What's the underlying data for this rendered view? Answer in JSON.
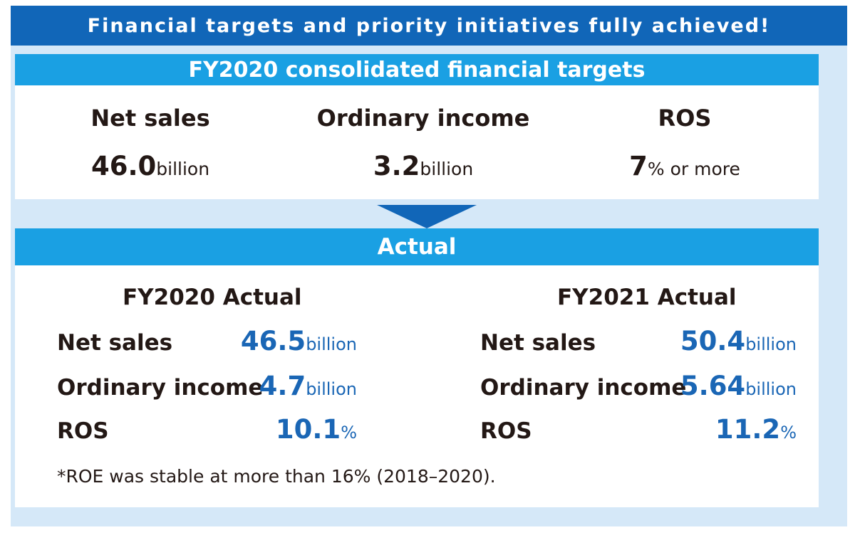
{
  "banner": "Financial targets and priority initiatives fully achieved!",
  "targets": {
    "header": "FY2020 consolidated financial targets",
    "items": [
      {
        "label": "Net sales",
        "value": "46.0",
        "unit": "billion"
      },
      {
        "label": "Ordinary income",
        "value": "3.2",
        "unit": "billion"
      },
      {
        "label": "ROS",
        "value": "7",
        "unit": "% or more"
      }
    ]
  },
  "actual": {
    "header": "Actual",
    "fy2020": {
      "title": "FY2020 Actual",
      "rows": [
        {
          "label": "Net sales",
          "value": "46.5",
          "unit": "billion"
        },
        {
          "label": "Ordinary income",
          "value": "4.7",
          "unit": "billion"
        },
        {
          "label": "ROS",
          "value": "10.1",
          "unit": "%"
        }
      ]
    },
    "fy2021": {
      "title": "FY2021 Actual",
      "rows": [
        {
          "label": "Net sales",
          "value": "50.4",
          "unit": "billion"
        },
        {
          "label": "Ordinary income",
          "value": "5.64",
          "unit": "billion"
        },
        {
          "label": "ROS",
          "value": "11.2",
          "unit": "%"
        }
      ]
    },
    "note": "*ROE was stable at more than 16% (2018–2020)."
  },
  "colors": {
    "banner": "#1166b8",
    "panel_header": "#1aa0e3",
    "background": "#d5e8f8",
    "value_blue": "#1a66b5"
  }
}
